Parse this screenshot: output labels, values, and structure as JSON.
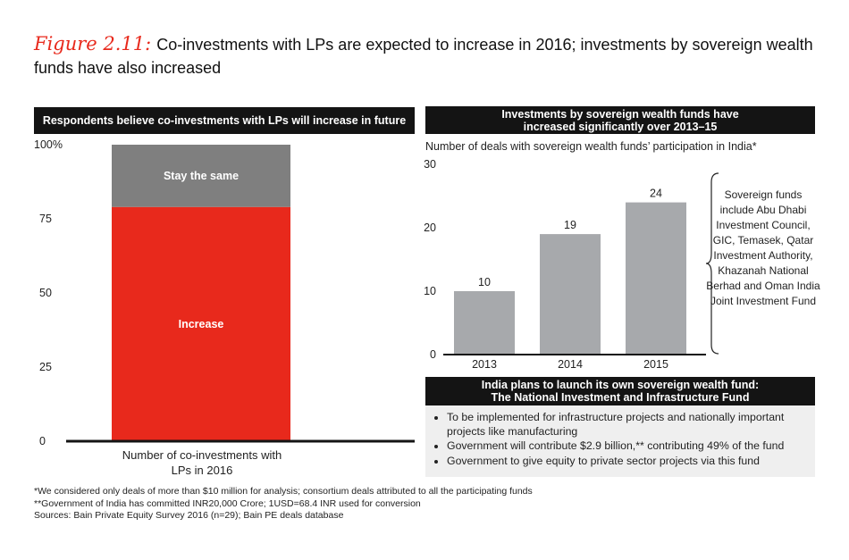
{
  "title": {
    "figure_label": "Figure 2.11:",
    "text": "Co-investments with LPs are expected to increase in 2016; investments by sovereign wealth funds have also increased"
  },
  "colors": {
    "accent_red": "#e8291c",
    "grey_bar": "#a7a9ac",
    "dark_grey": "#7f7f7f",
    "header_black": "#141414",
    "info_bg": "#efefef"
  },
  "left_panel": {
    "header": "Respondents believe co-investments with LPs will increase in future"
  },
  "right_panel": {
    "header_line1": "Investments by sovereign wealth funds have",
    "header_line2": "increased significantly over 2013–15",
    "subtitle": "Number of deals with sovereign wealth funds’ participation in India*",
    "note": "Sovereign funds include Abu Dhabi Investment Council, GIC, Temasek, Qatar Investment Authority, Khazanah National Berhad and Oman India Joint Investment Fund"
  },
  "info": {
    "header_line1": "India plans to launch its own sovereign wealth fund:",
    "header_line2": "The National Investment and Infrastructure Fund",
    "bullets": [
      "To be implemented for infrastructure projects and nationally important projects like manufacturing",
      "Government will contribute $2.9 billion,** contributing 49% of the fund",
      "Government to give equity to private sector projects via this fund"
    ]
  },
  "footnotes": [
    "*We considered only deals of more than $10 million for analysis; consortium deals attributed to all the participating funds",
    "**Government of India has committed INR20,000 Crore; 1USD=68.4 INR used for conversion",
    "Sources: Bain Private Equity Survey 2016 (n=29); Bain PE deals database"
  ],
  "chart_data": [
    {
      "type": "bar",
      "stacked": true,
      "title": "Respondents believe co-investments with LPs will increase in future",
      "xlabel_line1": "Number of co-investments with",
      "xlabel_line2": "LPs in 2016",
      "ylim": [
        0,
        100
      ],
      "yticks": [
        0,
        25,
        50,
        75,
        100
      ],
      "ytick_labels": [
        "0",
        "25",
        "50",
        "75",
        "100%"
      ],
      "series": [
        {
          "name": "Increase",
          "value": 79,
          "color": "#e8291c"
        },
        {
          "name": "Stay the same",
          "value": 21,
          "color": "#7f7f7f"
        }
      ]
    },
    {
      "type": "bar",
      "title": "Investments by sovereign wealth funds have increased significantly over 2013–15",
      "ylabel": "Number of deals with sovereign wealth funds’ participation in India*",
      "categories": [
        "2013",
        "2014",
        "2015"
      ],
      "values": [
        10,
        19,
        24
      ],
      "ylim": [
        0,
        30
      ],
      "yticks": [
        0,
        10,
        20,
        30
      ]
    }
  ]
}
